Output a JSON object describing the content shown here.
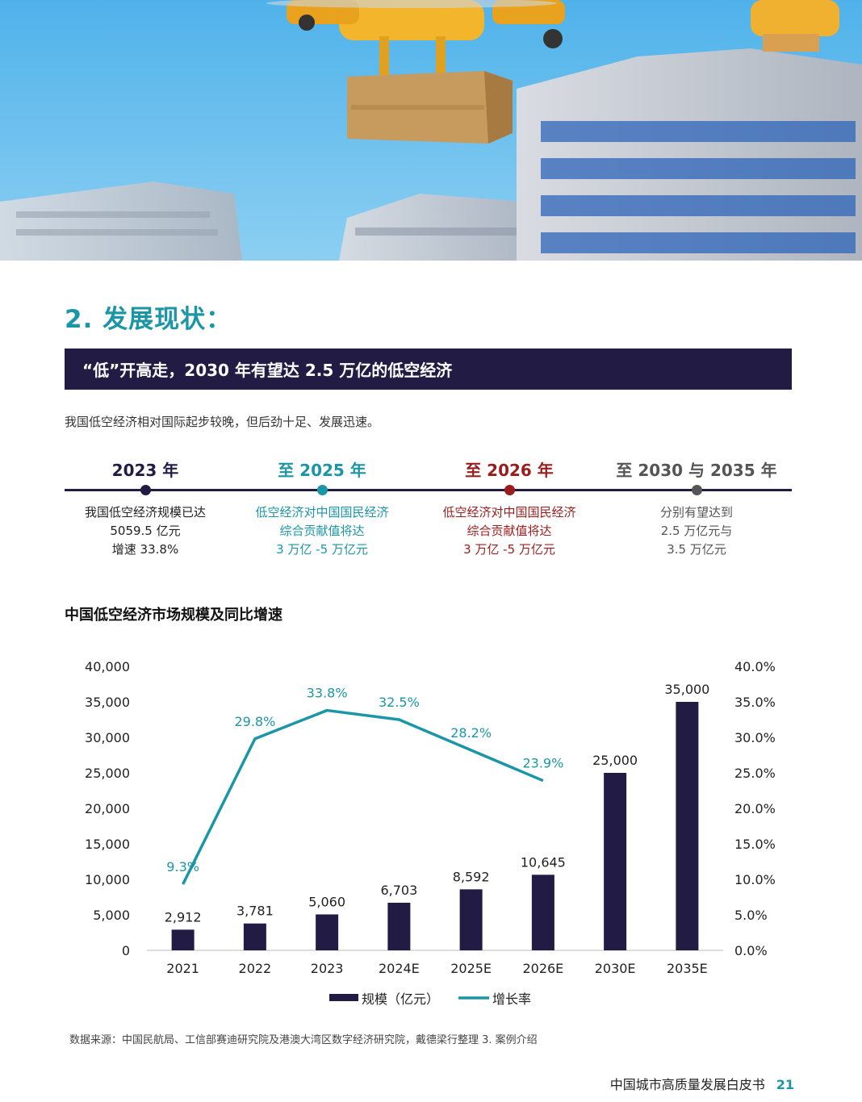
{
  "section_title": "2. 发展现状：",
  "banner": "“低”开高走，2030 年有望达 2.5 万亿的低空经济",
  "intro": "我国低空经济相对国际起步较晚，但后劲十足、发展迅速。",
  "colors": {
    "teal": "#1a96a6",
    "navy": "#221c45",
    "red": "#9b1c1c",
    "grey": "#666666"
  },
  "timeline": [
    {
      "year": "2023 年",
      "lines": [
        "我国低空经济规模已达",
        "5059.5 亿元",
        "增速 33.8%"
      ]
    },
    {
      "year": "至 2025 年",
      "lines": [
        "低空经济对中国国民经济",
        "综合贡献值将达",
        "3 万亿 -5 万亿元"
      ]
    },
    {
      "year": "至 2026 年",
      "lines": [
        "低空经济对中国国民经济",
        "综合贡献值将达",
        "3 万亿 -5 万亿元"
      ]
    },
    {
      "year": "至 2030 与 2035 年",
      "lines": [
        "分别有望达到",
        "2.5 万亿元与",
        "3.5 万亿元"
      ]
    }
  ],
  "chart_title": "中国低空经济市场规模及同比增速",
  "chart_data": {
    "type": "bar",
    "categories": [
      "2021",
      "2022",
      "2023",
      "2024E",
      "2025E",
      "2026E",
      "2030E",
      "2035E"
    ],
    "series": [
      {
        "name": "规模（亿元）",
        "type": "bar",
        "values": [
          2912,
          3781,
          5060,
          6703,
          8592,
          10645,
          25000,
          35000
        ],
        "labels": [
          "2,912",
          "3,781",
          "5,060",
          "6,703",
          "8,592",
          "10,645",
          "25,000",
          "35,000"
        ]
      },
      {
        "name": "增长率",
        "type": "line",
        "values": [
          9.3,
          29.8,
          33.8,
          32.5,
          28.2,
          23.9,
          null,
          null
        ],
        "labels": [
          "9.3%",
          "29.8%",
          "33.8%",
          "32.5%",
          "28.2%",
          "23.9%",
          "",
          ""
        ]
      }
    ],
    "y_left": {
      "min": 0,
      "max": 40000,
      "ticks": [
        "0",
        "5,000",
        "10,000",
        "15,000",
        "20,000",
        "25,000",
        "30,000",
        "35,000",
        "40,000"
      ]
    },
    "y_right": {
      "min": 0,
      "max": 40,
      "ticks": [
        "0.0%",
        "5.0%",
        "10.0%",
        "15.0%",
        "20.0%",
        "25.0%",
        "30.0%",
        "35.0%",
        "40.0%"
      ]
    },
    "legend_position": "bottom"
  },
  "source": "数据来源：中国民航局、工信部赛迪研究院及港澳大湾区数字经济研究院，戴德梁行整理 3. 案例介绍",
  "footer": {
    "title": "中国城市高质量发展白皮书",
    "page": "21"
  }
}
